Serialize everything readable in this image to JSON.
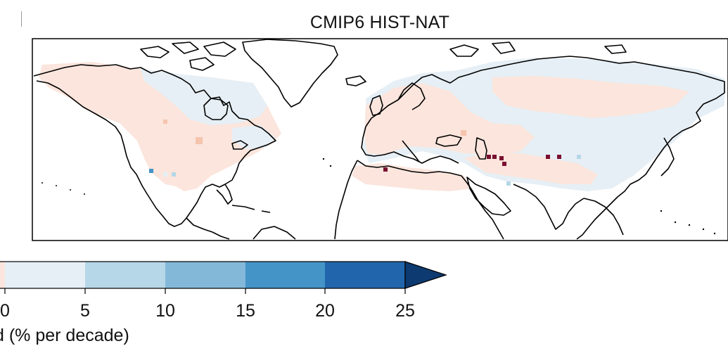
{
  "title": "CMIP6 HIST-NAT",
  "colorbar": {
    "title": "d (% per decade)",
    "tick_labels": [
      "0",
      "5",
      "10",
      "15",
      "20",
      "25"
    ],
    "bin_colors": [
      "#fbe5dc",
      "#e6eff5",
      "#b6d7e8",
      "#83b8d9",
      "#4494c8",
      "#2166ac",
      "#0d3a70"
    ],
    "extend": "max"
  },
  "legend_colors": {
    "negative_light": "#fbe5dc",
    "negative_mid": "#f6c4ae",
    "strong_negative": "#7a1030",
    "positive_light": "#e6eff5",
    "positive_mid": "#b6d7e8",
    "positive_strong": "#4494c8",
    "land_outline": "#000000"
  }
}
